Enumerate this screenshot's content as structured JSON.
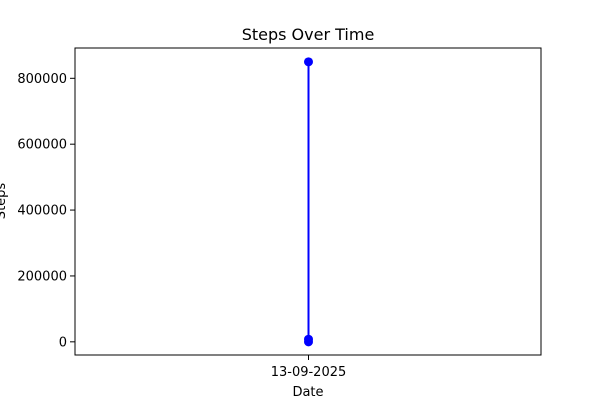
{
  "chart_data": {
    "type": "line",
    "title": "Steps Over Time",
    "xlabel": "Date",
    "ylabel": "Steps",
    "x_ticks": [
      "13-09-2025"
    ],
    "y_ticks": [
      "0",
      "200000",
      "400000",
      "600000",
      "800000"
    ],
    "ylim": [
      -40000,
      892000
    ],
    "grid": false,
    "series": [
      {
        "x": [
          "13-09-2025",
          "13-09-2025",
          "13-09-2025"
        ],
        "y": [
          850000,
          8000,
          0
        ],
        "color": "#0000ff",
        "marker": "circle"
      }
    ]
  }
}
